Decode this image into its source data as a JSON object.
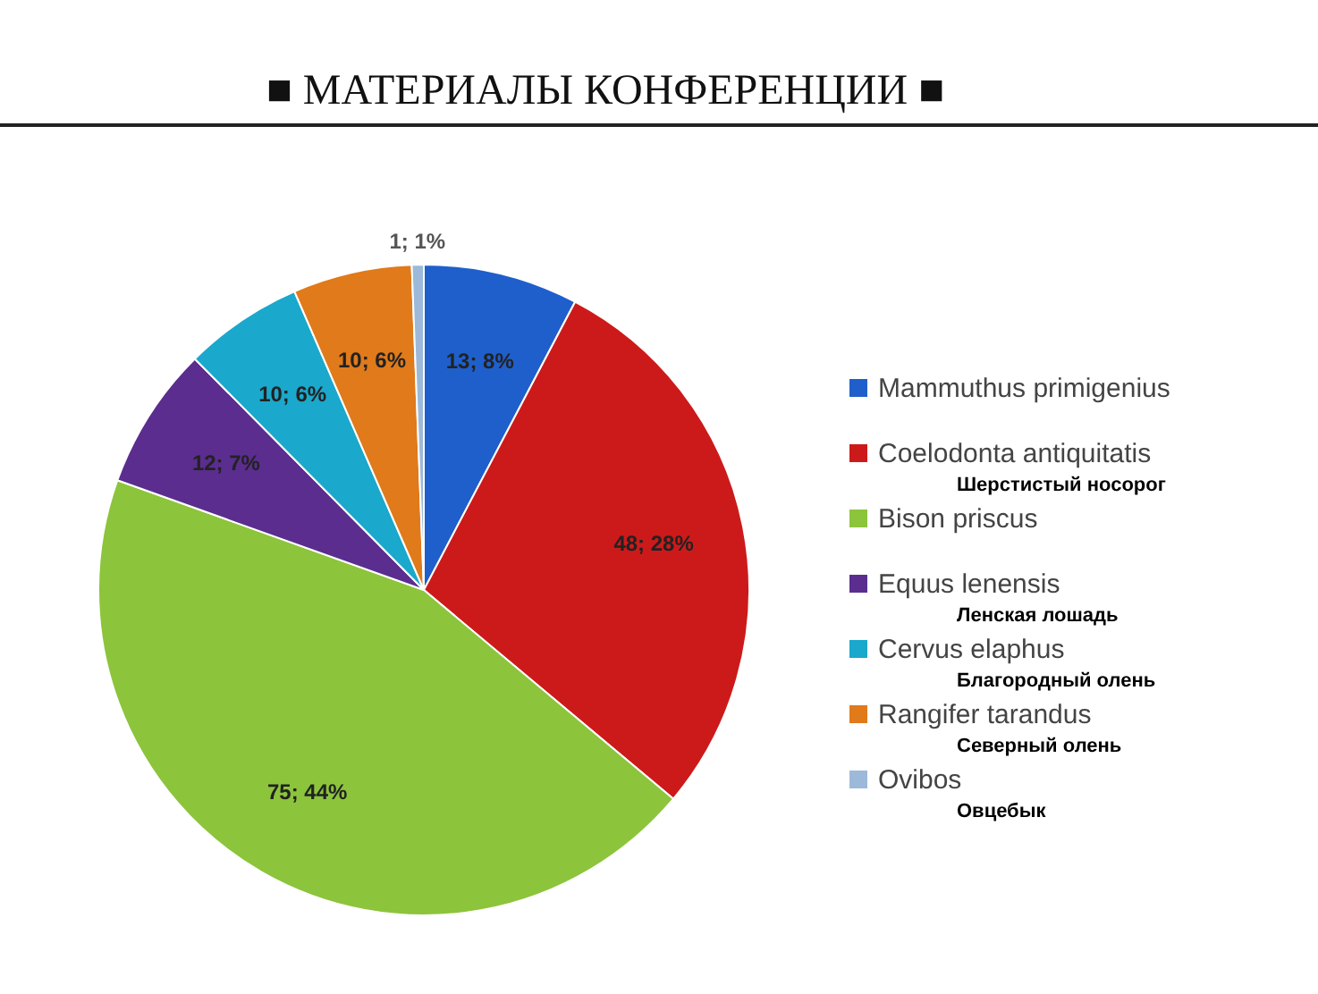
{
  "chart_data": {
    "type": "pie",
    "title": "■   МАТЕРИАЛЫ КОНФЕРЕНЦИИ   ■",
    "categories": [
      "Mammuthus primigenius",
      "Coelodonta antiquitatis",
      "Bison priscus",
      "Equus lenensis",
      "Cervus elaphus",
      "Rangifer tarandus",
      "Ovibos"
    ],
    "values": [
      13,
      48,
      75,
      12,
      10,
      10,
      1
    ],
    "value_labels": [
      "13; 8%",
      "48; 28%",
      "75; 44%",
      "12; 7%",
      "10; 6%",
      "10; 6%",
      "1; 1%"
    ],
    "colors": [
      "#1f5fcc",
      "#cc1a1a",
      "#8cc43c",
      "#5b2d8e",
      "#1aa8cc",
      "#e07a1a",
      "#9db9d9"
    ],
    "legend": "right",
    "annotations": [
      "Шерстистый носорог",
      "Ленская лошадь",
      "Благородный олень",
      "Северный олень",
      "Овцебык"
    ]
  }
}
